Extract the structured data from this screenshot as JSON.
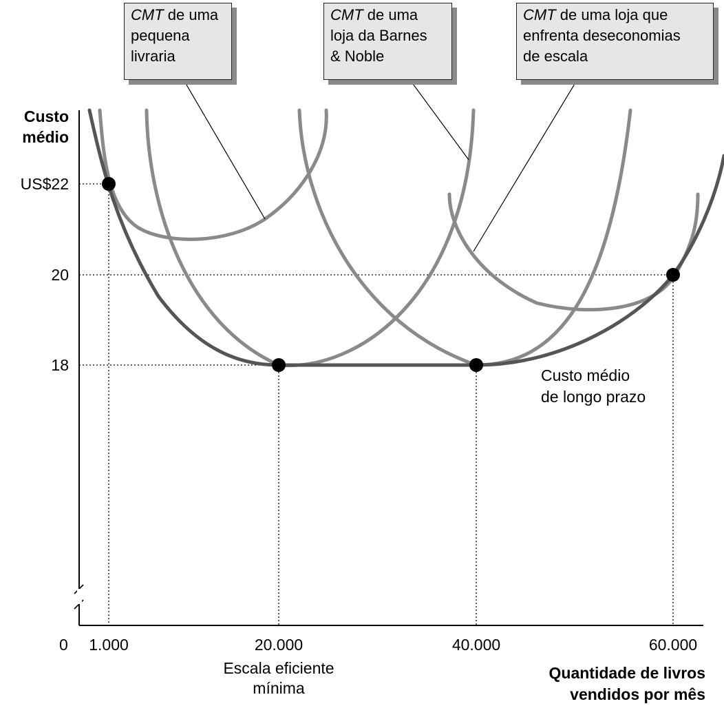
{
  "chart_data": {
    "type": "line",
    "ylabel_line1": "Custo",
    "ylabel_line2": "médio",
    "xlabel_line1": "Quantidade de livros",
    "xlabel_line2": "vendidos por mês",
    "origin_label": "0",
    "x_ticks": [
      "1.000",
      "20.000",
      "40.000",
      "60.000"
    ],
    "x_tick_values": [
      1000,
      20000,
      40000,
      60000
    ],
    "y_ticks": [
      "US$22",
      "20",
      "18"
    ],
    "y_tick_values": [
      22,
      20,
      18
    ],
    "xlim": [
      0,
      60000
    ],
    "min_efficient_scale_line1": "Escala eficiente",
    "min_efficient_scale_line2": "mínima",
    "lrac_label_line1": "Custo médio",
    "lrac_label_line2": "de longo prazo",
    "points": [
      {
        "x": 1000,
        "y": 22
      },
      {
        "x": 20000,
        "y": 18
      },
      {
        "x": 40000,
        "y": 18
      },
      {
        "x": 60000,
        "y": 20
      }
    ],
    "callouts": [
      {
        "em": "CMT",
        "rest": " de uma",
        "line2": "pequena",
        "line3": "livraria"
      },
      {
        "em": "CMT",
        "rest": " de uma",
        "line2": "loja da Barnes",
        "line3": "& Noble"
      },
      {
        "em": "CMT",
        "rest": " de uma loja que",
        "line2": "enfrenta deseconomias",
        "line3": "de escala"
      }
    ],
    "colors": {
      "lrac": "#555555",
      "srac": "#8a8a8a",
      "guide": "#000000"
    }
  }
}
